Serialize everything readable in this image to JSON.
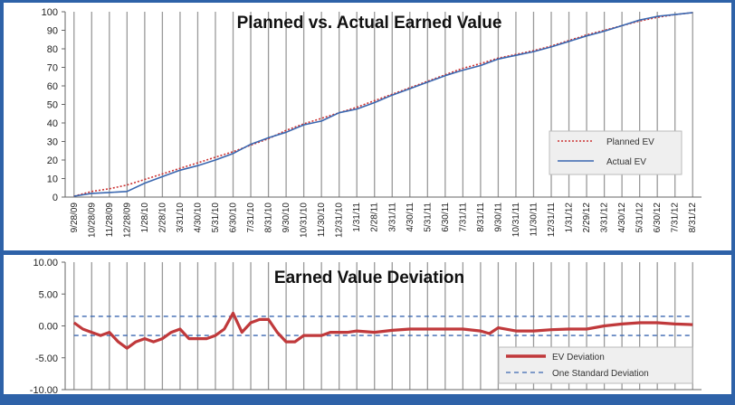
{
  "chart_data": [
    {
      "type": "line",
      "title": "Planned vs. Actual Earned Value",
      "x_tick_labels": [
        "9/28/09",
        "10/28/09",
        "11/28/09",
        "12/28/09",
        "1/28/10",
        "2/28/10",
        "3/31/10",
        "4/30/10",
        "5/31/10",
        "6/30/10",
        "7/31/10",
        "8/31/10",
        "9/30/10",
        "10/31/10",
        "11/30/10",
        "12/31/10",
        "1/31/11",
        "2/28/11",
        "3/31/11",
        "4/30/11",
        "5/31/11",
        "6/30/11",
        "7/31/11",
        "8/31/11",
        "9/30/11",
        "10/31/11",
        "11/30/11",
        "12/31/11",
        "1/31/12",
        "2/29/12",
        "3/31/12",
        "4/30/12",
        "5/31/12",
        "6/30/12",
        "7/31/12",
        "8/31/12"
      ],
      "y_ticks": [
        "0",
        "10",
        "20",
        "30",
        "40",
        "50",
        "60",
        "70",
        "80",
        "90",
        "100"
      ],
      "ylim": [
        0,
        100
      ],
      "grid": "vertical",
      "legend_position": "bottom-right",
      "series": [
        {
          "name": "Planned EV",
          "color": "#cc3333",
          "style": "dotted",
          "x": [
            0,
            1,
            2,
            3,
            4,
            5,
            6,
            7,
            8,
            9,
            10,
            11,
            12,
            13,
            14,
            15,
            16,
            17,
            18,
            19,
            20,
            21,
            22,
            23,
            24,
            25,
            26,
            27,
            28,
            29,
            30,
            31,
            32,
            33,
            34,
            35
          ],
          "values": [
            0.5,
            3,
            4.5,
            6.5,
            9.5,
            12.5,
            15.5,
            18.5,
            21.5,
            24.5,
            28,
            31.5,
            36,
            39.5,
            42.5,
            45.5,
            48.5,
            52,
            55.5,
            59,
            62.5,
            66,
            69.5,
            72,
            75,
            77,
            79,
            81.5,
            84.5,
            87.5,
            90,
            92.5,
            95,
            97,
            98.5,
            99.5
          ]
        },
        {
          "name": "Actual EV",
          "color": "#3a67b0",
          "style": "solid",
          "x": [
            0,
            1,
            2,
            3,
            4,
            5,
            6,
            7,
            8,
            9,
            10,
            11,
            12,
            13,
            14,
            15,
            16,
            17,
            18,
            19,
            20,
            21,
            22,
            23,
            24,
            25,
            26,
            27,
            28,
            29,
            30,
            31,
            32,
            33,
            34,
            35
          ],
          "values": [
            0.5,
            2,
            2.5,
            3,
            7.5,
            11,
            14.5,
            17,
            20,
            23.5,
            28.5,
            32,
            35,
            39,
            41,
            45.5,
            47.5,
            51,
            55,
            58.5,
            62,
            65.5,
            68.5,
            71,
            74.5,
            76.5,
            78.5,
            81,
            84,
            87,
            89.5,
            92.5,
            95.5,
            97.5,
            98.5,
            99.5
          ]
        }
      ]
    },
    {
      "type": "line",
      "title": "Earned Value Deviation",
      "y_ticks": [
        "10.00",
        "5.00",
        "0.00",
        "-5.00",
        "-10.00"
      ],
      "ylim": [
        -10,
        10
      ],
      "grid": "vertical",
      "legend_position": "bottom-right",
      "series": [
        {
          "name": "EV Deviation",
          "color": "#c0393b",
          "style": "solid",
          "x": [
            0,
            0.5,
            1,
            1.5,
            2,
            2.5,
            3,
            3.5,
            4,
            4.5,
            5,
            5.5,
            6,
            6.5,
            7,
            7.5,
            8,
            8.5,
            9,
            9.5,
            10,
            10.5,
            11,
            11.5,
            12,
            12.5,
            13,
            13.5,
            14,
            14.5,
            15,
            15.5,
            16,
            17,
            18,
            19,
            20,
            21,
            22,
            23,
            23.5,
            24,
            25,
            26,
            27,
            28,
            29,
            30,
            31,
            32,
            33,
            34,
            35
          ],
          "values": [
            0.5,
            -0.5,
            -1,
            -1.5,
            -1,
            -2.5,
            -3.5,
            -2.5,
            -2,
            -2.5,
            -2,
            -1,
            -0.5,
            -2,
            -2,
            -2,
            -1.5,
            -0.5,
            2,
            -1,
            0.5,
            1,
            1,
            -1,
            -2.5,
            -2.5,
            -1.5,
            -1.5,
            -1.5,
            -1,
            -1,
            -1,
            -0.8,
            -1,
            -0.7,
            -0.5,
            -0.5,
            -0.5,
            -0.5,
            -0.8,
            -1.2,
            -0.3,
            -0.8,
            -0.8,
            -0.6,
            -0.5,
            -0.5,
            0,
            0.3,
            0.5,
            0.5,
            0.3,
            0.2
          ]
        },
        {
          "name": "One Standard Deviation",
          "color": "#3a67b0",
          "style": "dashed",
          "x": [
            0,
            35
          ],
          "band": [
            1.5,
            -1.5
          ]
        }
      ]
    }
  ]
}
